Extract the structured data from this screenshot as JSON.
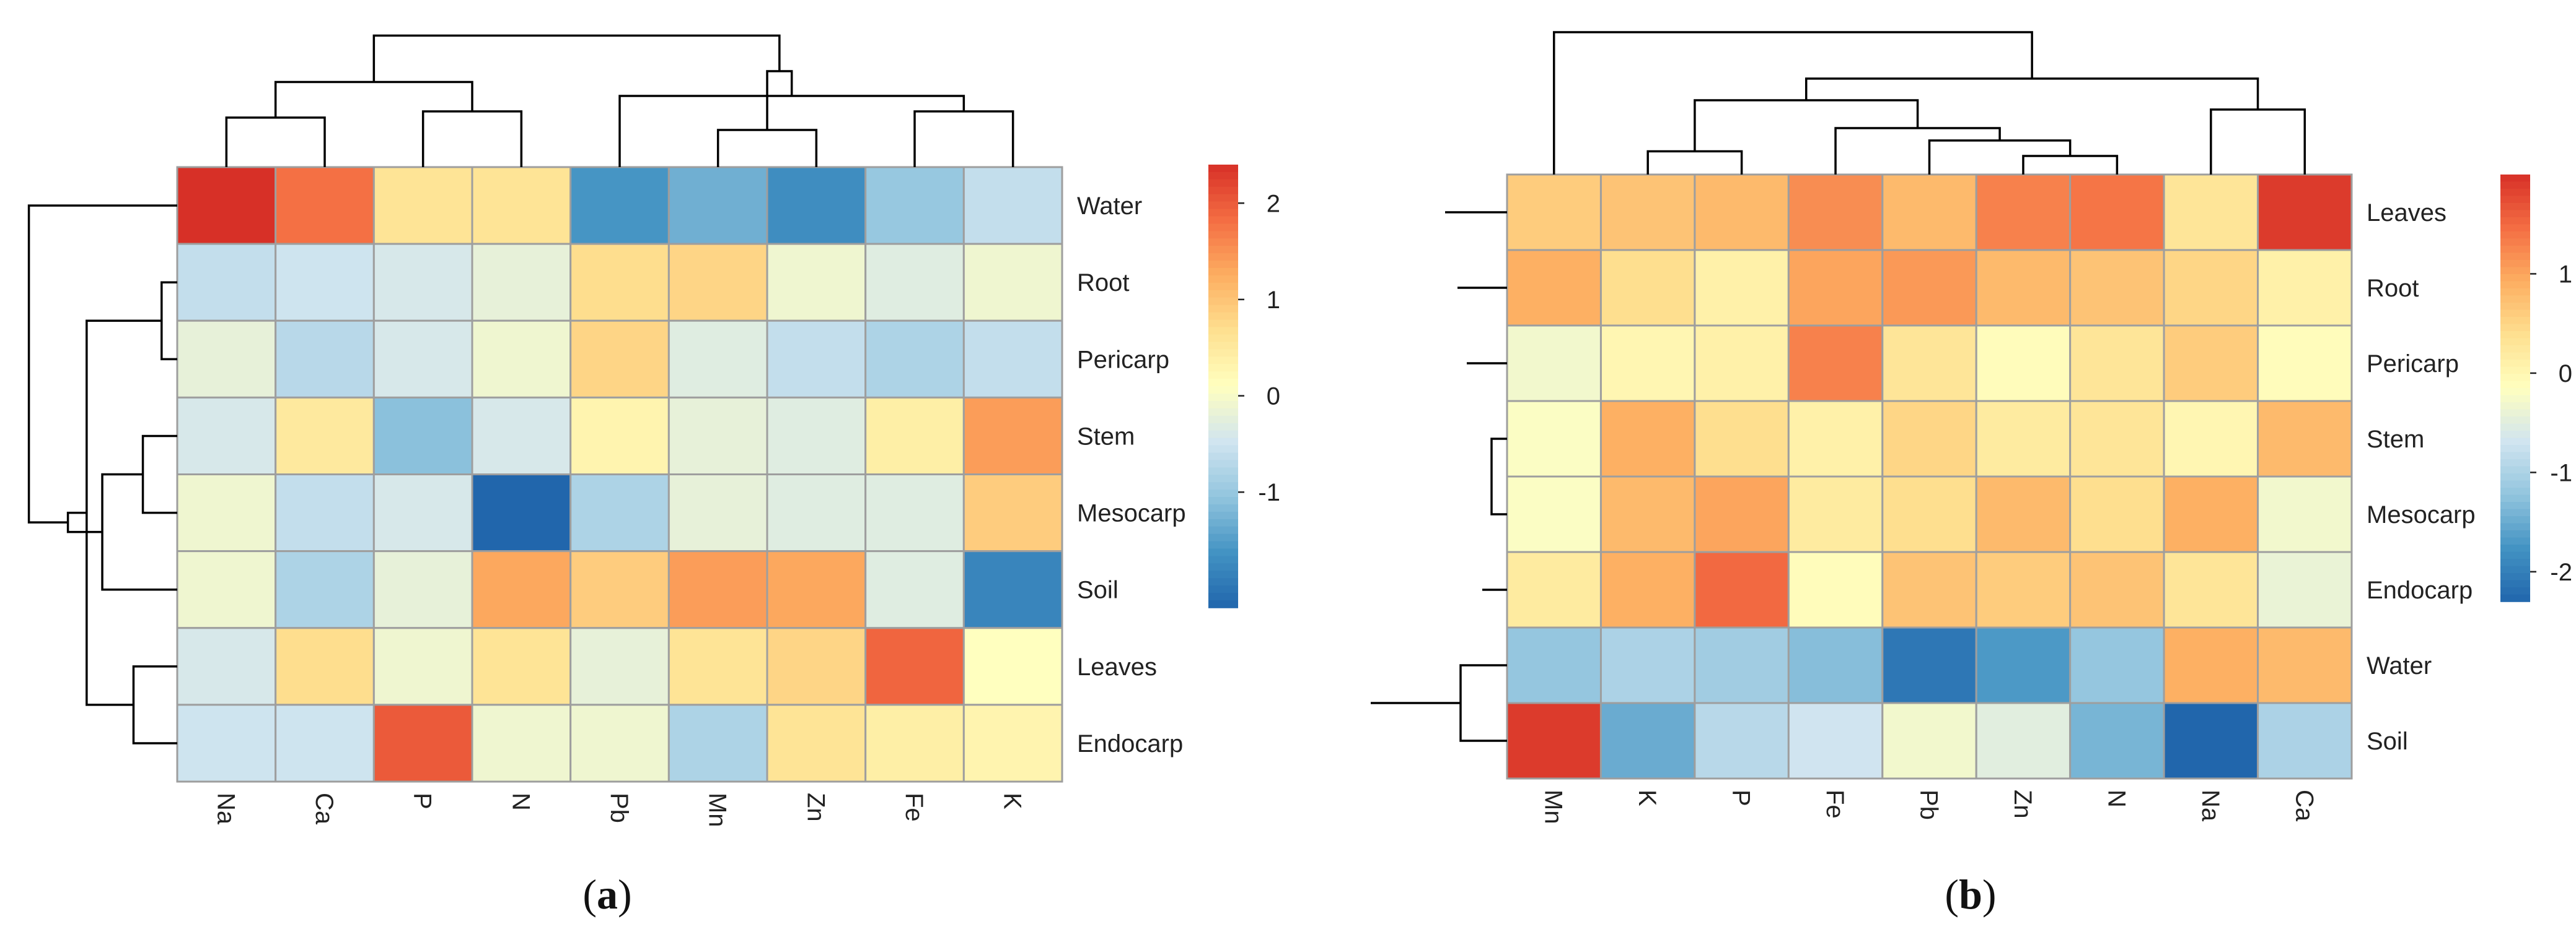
{
  "colors": {
    "scale": [
      "#2166ac",
      "#4393c3",
      "#92c5de",
      "#d1e5f0",
      "#ffffbf",
      "#fee090",
      "#fdae61",
      "#f46d43",
      "#d73027"
    ],
    "cell_border": "#9e9e9e",
    "dendrogram": "#000000"
  },
  "chart_data": [
    {
      "type": "heatmap",
      "panel_label": "a",
      "columns": [
        "Na",
        "Ca",
        "P",
        "N",
        "Pb",
        "Mn",
        "Zn",
        "Fe",
        "K"
      ],
      "rows": [
        "Water",
        "Root",
        "Pericarp",
        "Stem",
        "Mesocarp",
        "Soil",
        "Leaves",
        "Endocarp"
      ],
      "values": [
        [
          2.4,
          1.8,
          0.6,
          0.6,
          -1.6,
          -1.3,
          -1.7,
          -1.0,
          -0.6
        ],
        [
          -0.6,
          -0.5,
          -0.4,
          -0.2,
          0.7,
          0.8,
          -0.1,
          -0.3,
          -0.1
        ],
        [
          -0.2,
          -0.7,
          -0.4,
          -0.1,
          0.8,
          -0.3,
          -0.6,
          -0.8,
          -0.6
        ],
        [
          -0.4,
          0.5,
          -1.1,
          -0.4,
          0.3,
          -0.2,
          -0.3,
          0.4,
          1.4
        ],
        [
          -0.1,
          -0.6,
          -0.4,
          -2.2,
          -0.8,
          -0.2,
          -0.3,
          -0.3,
          0.9
        ],
        [
          -0.1,
          -0.8,
          -0.2,
          1.3,
          0.9,
          1.4,
          1.3,
          -0.3,
          -1.8
        ],
        [
          -0.4,
          0.7,
          -0.1,
          0.6,
          -0.2,
          0.6,
          0.8,
          1.9,
          0.1
        ],
        [
          -0.5,
          -0.5,
          2.0,
          -0.1,
          -0.1,
          -0.8,
          0.6,
          0.4,
          0.3
        ]
      ],
      "legend": {
        "min": -2.2,
        "max": 2.4,
        "ticks": [
          2,
          1,
          0,
          -1
        ]
      },
      "col_tree": [
        [
          7,
          8
        ],
        [
          5,
          6
        ],
        [
          4,
          9
        ],
        [
          2,
          3
        ],
        [
          0,
          1
        ],
        [
          11,
          10
        ],
        [
          12,
          13
        ],
        [
          14,
          15
        ]
      ],
      "col_tree_heights": [
        0.36,
        0.24,
        0.46,
        0.36,
        0.32,
        0.62,
        0.55,
        0.85
      ],
      "row_tree": [
        [
          1,
          2
        ],
        [
          3,
          4
        ],
        [
          6,
          7
        ],
        [
          9,
          5
        ],
        [
          8,
          10
        ],
        [
          11,
          12
        ],
        [
          0,
          13
        ]
      ],
      "row_tree_heights": [
        0.1,
        0.22,
        0.28,
        0.48,
        0.58,
        0.7,
        0.95
      ]
    },
    {
      "type": "heatmap",
      "panel_label": "b",
      "columns": [
        "Mn",
        "K",
        "P",
        "Fe",
        "Pb",
        "Zn",
        "N",
        "Na",
        "Ca"
      ],
      "rows": [
        "Leaves",
        "Root",
        "Pericarp",
        "Stem",
        "Mesocarp",
        "Endocarp",
        "Water",
        "Soil"
      ],
      "values": [
        [
          0.6,
          0.7,
          0.8,
          1.2,
          0.8,
          1.3,
          1.4,
          0.3,
          1.9
        ],
        [
          0.9,
          0.4,
          0.1,
          1.0,
          1.1,
          0.8,
          0.7,
          0.5,
          0.1
        ],
        [
          -0.3,
          0.0,
          0.1,
          1.3,
          0.3,
          -0.1,
          0.3,
          0.6,
          -0.1
        ],
        [
          -0.2,
          0.9,
          0.4,
          0.1,
          0.5,
          0.2,
          0.3,
          0.0,
          0.8
        ],
        [
          -0.2,
          0.8,
          1.0,
          0.2,
          0.4,
          0.8,
          0.4,
          0.9,
          -0.3
        ],
        [
          0.2,
          0.9,
          1.5,
          -0.1,
          0.7,
          0.6,
          0.7,
          0.3,
          -0.4
        ],
        [
          -1.2,
          -1.0,
          -1.1,
          -1.3,
          -2.1,
          -1.7,
          -1.2,
          0.9,
          0.8
        ],
        [
          1.9,
          -1.5,
          -0.9,
          -0.7,
          -0.3,
          -0.5,
          -1.4,
          -2.3,
          -1.0
        ]
      ],
      "legend": {
        "min": -2.3,
        "max": 2.0,
        "ticks": [
          1,
          0,
          -1,
          -2
        ]
      },
      "col_tree": [
        [
          1,
          2
        ],
        [
          5,
          6
        ],
        [
          4,
          10
        ],
        [
          3,
          11
        ],
        [
          9,
          12
        ],
        [
          7,
          8
        ],
        [
          13,
          14
        ],
        [
          0,
          15
        ]
      ],
      "col_tree_heights": [
        0.15,
        0.12,
        0.22,
        0.3,
        0.48,
        0.42,
        0.62,
        0.92
      ],
      "row_tree": [
        [
          3,
          4
        ],
        [
          5,
          9
        ],
        [
          2,
          10
        ],
        [
          1,
          11
        ],
        [
          0,
          12
        ],
        [
          6,
          7
        ],
        [
          13,
          14
        ]
      ],
      "row_tree_heights": [
        0.1,
        0.16,
        0.26,
        0.32,
        0.4,
        0.3,
        0.88
      ]
    }
  ]
}
